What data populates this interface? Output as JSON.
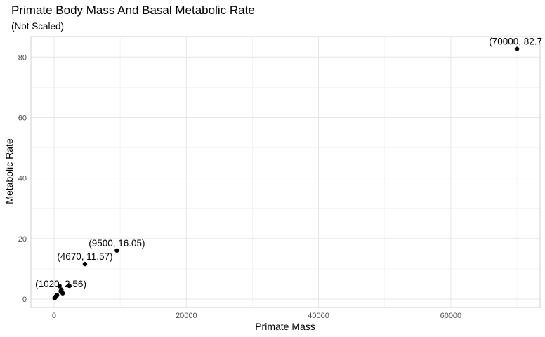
{
  "chart_data": {
    "type": "scatter",
    "title": "Primate Body Mass And Basal Metabolic Rate",
    "subtitle": "(Not Scaled)",
    "xlabel": "Primate Mass",
    "ylabel": "Metabolic Rate",
    "xlim": [
      -3500,
      73500
    ],
    "ylim": [
      -2.8,
      86.8
    ],
    "x_ticks": [
      0,
      20000,
      40000,
      60000
    ],
    "x_tick_labels": [
      "0",
      "20000",
      "40000",
      "60000"
    ],
    "y_ticks": [
      0,
      20,
      40,
      60,
      80
    ],
    "y_tick_labels": [
      "0",
      "20",
      "40",
      "60",
      "80"
    ],
    "grid": true,
    "points": [
      {
        "x": 70000,
        "y": 82.7
      },
      {
        "x": 9500,
        "y": 16.05
      },
      {
        "x": 4670,
        "y": 11.57
      },
      {
        "x": 2300,
        "y": 4.4
      },
      {
        "x": 1020,
        "y": 2.56
      },
      {
        "x": 830,
        "y": 4.3
      },
      {
        "x": 1300,
        "y": 1.9
      },
      {
        "x": 1100,
        "y": 3.1
      },
      {
        "x": 450,
        "y": 1.3
      },
      {
        "x": 300,
        "y": 0.9
      },
      {
        "x": 160,
        "y": 0.5
      },
      {
        "x": 80,
        "y": 0.3
      }
    ],
    "annotations": [
      {
        "text": "(70000, 82.7",
        "x": 70000,
        "y": 82.7
      },
      {
        "text": "(9500, 16.05)",
        "x": 9500,
        "y": 16.05
      },
      {
        "text": "(4670, 11.57)",
        "x": 4670,
        "y": 11.57
      },
      {
        "text": "(1020, 2.56)",
        "x": 1020,
        "y": 2.56
      }
    ],
    "colors": {
      "point": "#000000",
      "panel_border": "#d0d0d0",
      "grid_major": "#e6e6e6",
      "grid_minor": "#f2f2f2",
      "background": "#ffffff"
    }
  }
}
